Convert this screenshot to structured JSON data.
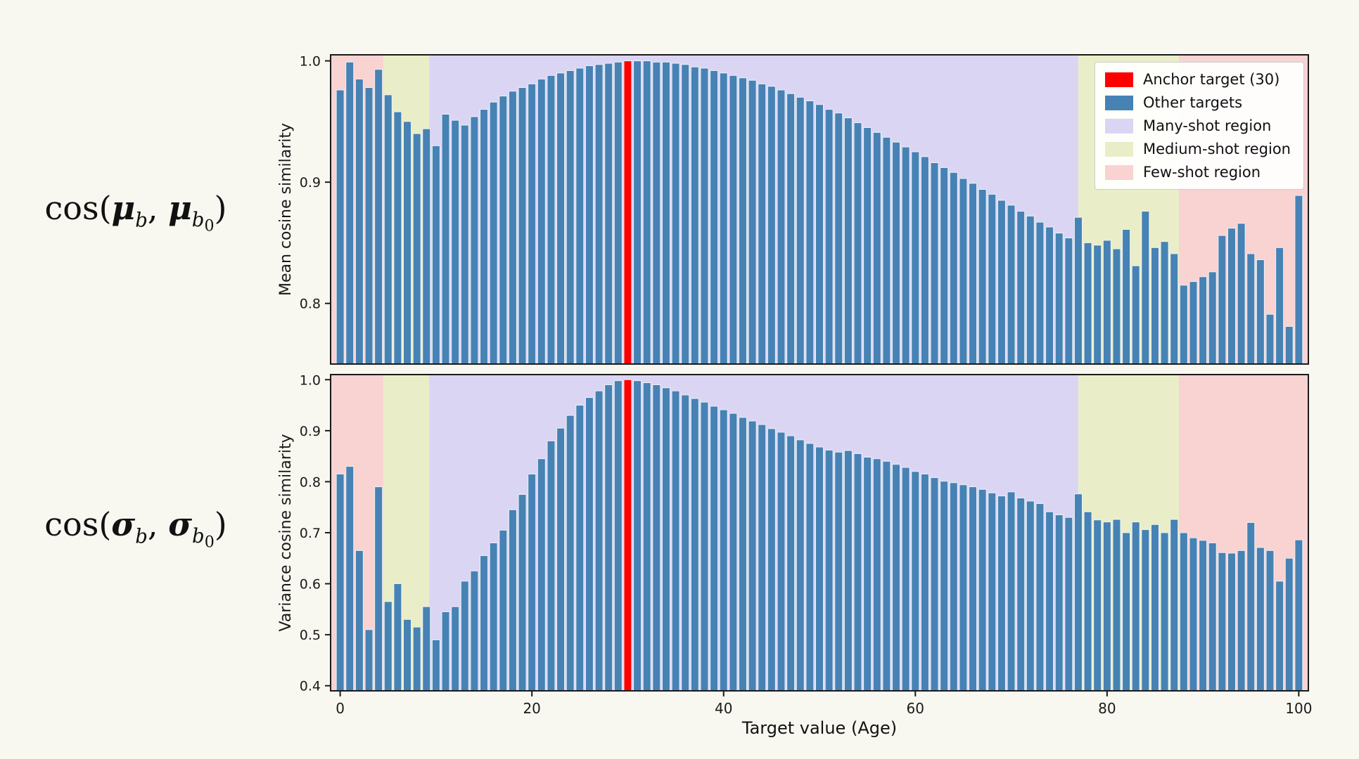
{
  "figure": {
    "x_label": "Target value (Age)",
    "x_ticks": [
      0,
      20,
      40,
      60,
      80,
      100
    ],
    "x_range": [
      -1,
      101
    ],
    "colors": {
      "bar": "#4682b4",
      "bar_edge": "#eef4f9",
      "anchor": "#ff0000",
      "many_shot": "#dbd5f4",
      "medium_shot": "#e9eec8",
      "few_shot": "#f9d2d2",
      "axis": "#1a1a1a",
      "background": "#f8f8f1"
    },
    "regions": [
      {
        "name": "few-shot",
        "start": -1,
        "end": 4.5,
        "color_key": "few_shot"
      },
      {
        "name": "medium-shot",
        "start": 4.5,
        "end": 9.3,
        "color_key": "medium_shot"
      },
      {
        "name": "many-shot",
        "start": 9.3,
        "end": 77.0,
        "color_key": "many_shot"
      },
      {
        "name": "medium-shot",
        "start": 77.0,
        "end": 87.5,
        "color_key": "medium_shot"
      },
      {
        "name": "few-shot",
        "start": 87.5,
        "end": 101,
        "color_key": "few_shot"
      }
    ],
    "legend": {
      "items": [
        {
          "label": "Anchor target (30)",
          "color_key": "anchor"
        },
        {
          "label": "Other targets",
          "color_key": "bar"
        },
        {
          "label": "Many-shot region",
          "color_key": "many_shot"
        },
        {
          "label": "Medium-shot region",
          "color_key": "medium_shot"
        },
        {
          "label": "Few-shot region",
          "color_key": "few_shot"
        }
      ]
    }
  },
  "row_labels": [
    {
      "fn": "cos(",
      "sym1": "μ",
      "sub1": "b",
      "comma": ", ",
      "sym2": "μ",
      "sub2": "b",
      "subsub2": "0",
      "close": ")"
    },
    {
      "fn": "cos(",
      "sym1": "σ",
      "sub1": "b",
      "comma": ", ",
      "sym2": "σ",
      "sub2": "b",
      "subsub2": "0",
      "close": ")"
    }
  ],
  "chart_data": [
    {
      "type": "bar",
      "panel": "top",
      "ylabel": "Mean cosine similarity",
      "xlabel": "Target value (Age)",
      "ylim": [
        0.75,
        1.005
      ],
      "yticks": [
        0.8,
        0.9,
        1.0
      ],
      "anchor_x": 30,
      "anchor_label": "Anchor target (30)",
      "x_start": 0,
      "x_step": 1,
      "values": [
        0.976,
        0.999,
        0.985,
        0.978,
        0.993,
        0.972,
        0.958,
        0.95,
        0.94,
        0.944,
        0.93,
        0.956,
        0.951,
        0.947,
        0.954,
        0.96,
        0.966,
        0.971,
        0.975,
        0.978,
        0.981,
        0.985,
        0.988,
        0.99,
        0.992,
        0.994,
        0.996,
        0.997,
        0.998,
        0.999,
        1.0,
        1.0,
        1.0,
        0.999,
        0.999,
        0.998,
        0.997,
        0.995,
        0.994,
        0.992,
        0.99,
        0.988,
        0.986,
        0.984,
        0.981,
        0.979,
        0.976,
        0.973,
        0.97,
        0.967,
        0.964,
        0.96,
        0.957,
        0.953,
        0.949,
        0.945,
        0.941,
        0.937,
        0.933,
        0.929,
        0.925,
        0.921,
        0.916,
        0.912,
        0.908,
        0.903,
        0.899,
        0.894,
        0.89,
        0.885,
        0.881,
        0.876,
        0.872,
        0.867,
        0.863,
        0.858,
        0.854,
        0.871,
        0.85,
        0.848,
        0.852,
        0.845,
        0.861,
        0.831,
        0.876,
        0.846,
        0.851,
        0.841,
        0.815,
        0.818,
        0.822,
        0.826,
        0.856,
        0.862,
        0.866,
        0.841,
        0.836,
        0.791,
        0.846,
        0.781,
        0.889
      ]
    },
    {
      "type": "bar",
      "panel": "bottom",
      "ylabel": "Variance cosine similarity",
      "xlabel": "Target value (Age)",
      "ylim": [
        0.39,
        1.01
      ],
      "yticks": [
        0.4,
        0.5,
        0.6,
        0.7,
        0.8,
        0.9,
        1.0
      ],
      "anchor_x": 30,
      "anchor_label": "Anchor target (30)",
      "x_start": 0,
      "x_step": 1,
      "values": [
        0.815,
        0.83,
        0.665,
        0.51,
        0.79,
        0.565,
        0.6,
        0.53,
        0.515,
        0.555,
        0.49,
        0.545,
        0.555,
        0.605,
        0.625,
        0.655,
        0.68,
        0.705,
        0.745,
        0.775,
        0.815,
        0.845,
        0.88,
        0.905,
        0.93,
        0.95,
        0.965,
        0.978,
        0.99,
        0.998,
        1.0,
        0.998,
        0.994,
        0.99,
        0.984,
        0.978,
        0.97,
        0.963,
        0.956,
        0.948,
        0.941,
        0.934,
        0.926,
        0.919,
        0.912,
        0.904,
        0.897,
        0.89,
        0.882,
        0.875,
        0.868,
        0.862,
        0.858,
        0.861,
        0.855,
        0.848,
        0.845,
        0.84,
        0.834,
        0.828,
        0.82,
        0.815,
        0.808,
        0.801,
        0.798,
        0.794,
        0.79,
        0.785,
        0.778,
        0.772,
        0.78,
        0.768,
        0.762,
        0.757,
        0.741,
        0.735,
        0.73,
        0.776,
        0.741,
        0.725,
        0.721,
        0.726,
        0.7,
        0.721,
        0.706,
        0.716,
        0.7,
        0.726,
        0.7,
        0.69,
        0.685,
        0.68,
        0.661,
        0.66,
        0.665,
        0.72,
        0.671,
        0.665,
        0.605,
        0.65,
        0.686
      ]
    }
  ]
}
